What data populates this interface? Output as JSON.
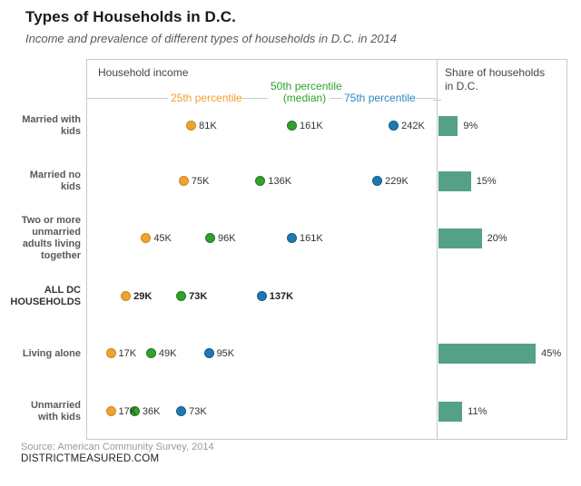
{
  "title": "Types of Households in D.C.",
  "subtitle": "Income and prevalence of different types of households in D.C. in 2014",
  "left_panel": {
    "header": "Household income"
  },
  "right_panel": {
    "header": "Share of households\nin D.C."
  },
  "legend": {
    "p25": "25th percentile",
    "p50_line1": "50th percentile",
    "p50_line2": "(median)",
    "p75": "75th percentile"
  },
  "footer": {
    "source": "Source: American Community Survey, 2014",
    "site": "DISTRICTMEASURED.COM"
  },
  "colors": {
    "p25_fill": "#F0A32F",
    "p25_border": "#C8891E",
    "p50_fill": "#33A02C",
    "p50_border": "#1F7A1F",
    "p75_fill": "#1F78B4",
    "p75_border": "#155A87",
    "bar_fill": "#55A089",
    "p25_text": "#F59E2E",
    "p50_text": "#2EA12E",
    "p75_text": "#2E86C1"
  },
  "chart_data": {
    "type": "dot-plot+bar",
    "title": "Types of Households in D.C.",
    "x_unit": "household income, thousands of USD (K)",
    "share_unit": "percent of D.C. households",
    "x_range_k": [
      0,
      260
    ],
    "share_range_pct": [
      0,
      60
    ],
    "grid": false,
    "categories": [
      [
        "Married with",
        "kids"
      ],
      [
        "Married no",
        "kids"
      ],
      [
        "Two or more",
        "unmarried",
        "adults living",
        "together"
      ],
      [
        "ALL DC",
        "HOUSEHOLDS"
      ],
      [
        "Living alone"
      ],
      [
        "Unmarried",
        "with kids"
      ]
    ],
    "series": [
      {
        "name": "25th percentile",
        "values": [
          81,
          75,
          45,
          29,
          17,
          17
        ]
      },
      {
        "name": "50th percentile (median)",
        "values": [
          161,
          136,
          96,
          73,
          49,
          36
        ]
      },
      {
        "name": "75th percentile",
        "values": [
          242,
          229,
          161,
          137,
          95,
          73
        ]
      }
    ],
    "value_labels": [
      [
        "81K",
        "161K",
        "242K"
      ],
      [
        "75K",
        "136K",
        "229K"
      ],
      [
        "45K",
        "96K",
        "161K"
      ],
      [
        "29K",
        "73K",
        "137K"
      ],
      [
        "17K",
        "49K",
        "95K"
      ],
      [
        "17K",
        "36K",
        "73K"
      ]
    ],
    "share_percent": [
      9,
      15,
      20,
      null,
      45,
      11
    ],
    "share_labels": [
      "9%",
      "15%",
      "20%",
      null,
      "45%",
      "11%"
    ],
    "emphasis_row": 3
  }
}
